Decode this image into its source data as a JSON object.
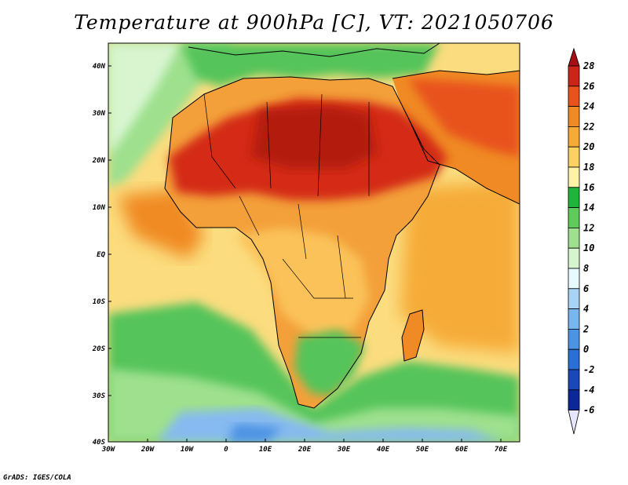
{
  "title": "Temperature at 900hPa [C], VT: 2021050706",
  "credit": "GrADS: IGES/COLA",
  "axes": {
    "lat_labels": [
      "40N",
      "30N",
      "20N",
      "10N",
      "EQ",
      "10S",
      "20S",
      "30S",
      "40S"
    ],
    "lon_labels": [
      "30W",
      "20W",
      "10W",
      "0",
      "10E",
      "20E",
      "30E",
      "40E",
      "50E",
      "60E",
      "70E"
    ]
  },
  "colorbar": {
    "labels": [
      "28",
      "26",
      "24",
      "22",
      "20",
      "18",
      "16",
      "14",
      "12",
      "10",
      "8",
      "6",
      "4",
      "2",
      "0",
      "-2",
      "-4",
      "-6"
    ],
    "colors": [
      "#a50f15",
      "#cb2418",
      "#e8521c",
      "#f08a24",
      "#f6ab38",
      "#fbd163",
      "#fdf3a8",
      "#1fb53b",
      "#5fcb5b",
      "#9ee08e",
      "#d6f5cf",
      "#e7fbff",
      "#a9d3f5",
      "#78b6ee",
      "#4c93e3",
      "#2a6fd6",
      "#1a48b8",
      "#0c2898",
      "#06126a"
    ]
  },
  "map_regions": {
    "ocean_cool": "#d4f2c8",
    "ocean_warm": "#fbe08a",
    "land_hot": "#d42a12",
    "land_warm": "#f3a03a",
    "land_mild": "#fcc45a",
    "land_green": "#54c45a",
    "cold_south": "#86baf0"
  }
}
